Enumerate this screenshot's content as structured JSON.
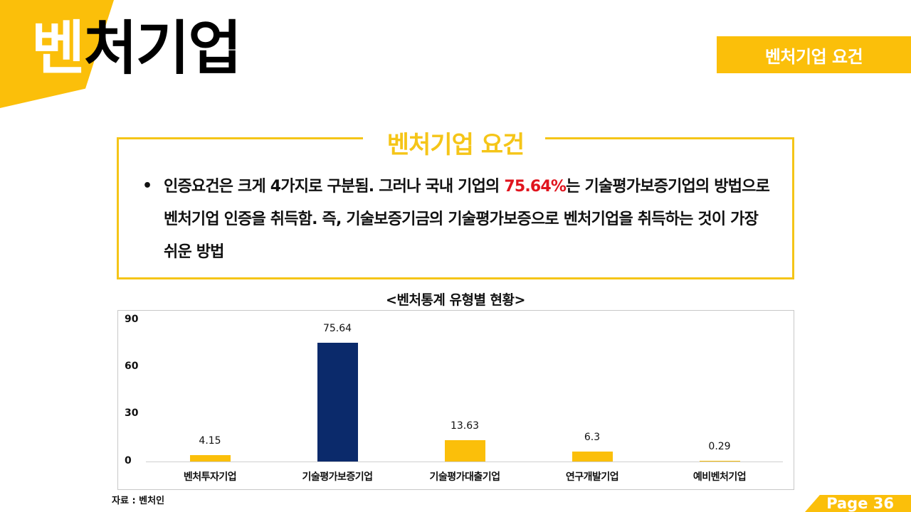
{
  "header": {
    "title_first_char": "벤",
    "title_rest": "처기업",
    "badge": "벤처기업 요건"
  },
  "requirements": {
    "title": "벤처기업 요건",
    "bullet": "•",
    "text_before": "인증요건은 크게 4가지로 구분됨. 그러나 국내 기업의 ",
    "highlight": "75.64%",
    "text_after": "는 기술평가보증기업의 방법으로 벤처기업 인증을 취득함. 즉, 기술보증기금의 기술평가보증으로 벤처기업을 취득하는 것이 가장 쉬운 방법"
  },
  "chart_data": {
    "type": "bar",
    "title": "<벤처통계 유형별 현황>",
    "categories": [
      "벤처투자기업",
      "기술평가보증기업",
      "기술평가대출기업",
      "연구개발기업",
      "예비벤처기업"
    ],
    "values": [
      4.15,
      75.64,
      13.63,
      6.3,
      0.29
    ],
    "value_labels": [
      "4.15",
      "75.64",
      "13.63",
      "6.3",
      "0.29"
    ],
    "colors": [
      "#fbbf0a",
      "#0b2a6b",
      "#fbbf0a",
      "#fbbf0a",
      "#fbbf0a"
    ],
    "yticks": [
      "0",
      "30",
      "60",
      "90"
    ],
    "ylim": [
      0,
      90
    ],
    "xlabel": "",
    "ylabel": "",
    "grid": false,
    "legend": "none"
  },
  "footer": {
    "source": "자료 : 벤처인",
    "page": "Page 36"
  },
  "colors": {
    "accent": "#fbbf0a",
    "highlight": "#e0141e",
    "navy": "#0b2a6b"
  }
}
